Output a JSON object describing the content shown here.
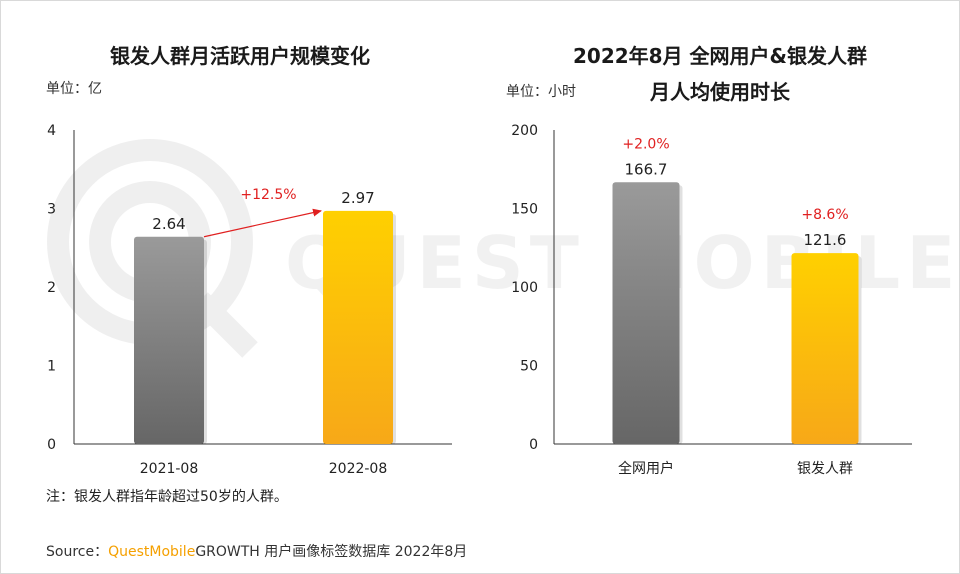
{
  "colors": {
    "gray_top": "#9a9a9a",
    "gray_bottom": "#666666",
    "gold_top": "#ffd000",
    "gold_bottom": "#f7a818",
    "growth_text": "#e02020",
    "axis": "#333333"
  },
  "watermark": "QUEST MOBILE",
  "note": "注：银发人群指年龄超过50岁的人群。",
  "source": {
    "prefix": "Source：",
    "brand": "QuestMobile",
    "rest": "GROWTH 用户画像标签数据库 2022年8月"
  },
  "chart_data": [
    {
      "type": "bar",
      "title": "银发人群月活跃用户规模变化",
      "unit_label": "单位：亿",
      "categories": [
        "2021-08",
        "2022-08"
      ],
      "values": [
        2.64,
        2.97
      ],
      "data_labels": [
        "2.64",
        "2.97"
      ],
      "yticks": [
        "0",
        "1",
        "2",
        "3",
        "4"
      ],
      "ylim": [
        0,
        4
      ],
      "annotations": [
        {
          "text": "+12.5%",
          "type": "arrow"
        }
      ]
    },
    {
      "type": "bar",
      "title_line1": "2022年8月 全网用户&银发人群",
      "title_line2": "月人均使用时长",
      "unit_label": "单位：小时",
      "categories": [
        "全网用户",
        "银发人群"
      ],
      "values": [
        166.7,
        121.6
      ],
      "data_labels": [
        "166.7",
        "121.6"
      ],
      "growth_labels": [
        "+2.0%",
        "+8.6%"
      ],
      "yticks": [
        "0",
        "50",
        "100",
        "150",
        "200"
      ],
      "ylim": [
        0,
        200
      ]
    }
  ]
}
